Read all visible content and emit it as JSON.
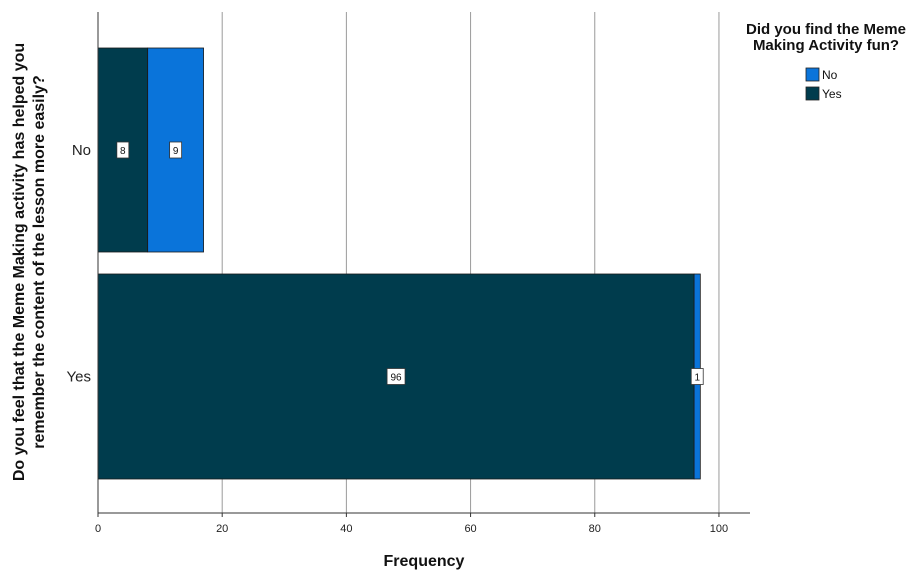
{
  "chart_data": {
    "type": "bar",
    "orientation": "horizontal",
    "stacked": true,
    "categories": [
      "No",
      "Yes"
    ],
    "series": [
      {
        "name": "Yes",
        "color": "#003C4D",
        "values": [
          8,
          96
        ]
      },
      {
        "name": "No",
        "color": "#0A74DA",
        "values": [
          9,
          1
        ]
      }
    ],
    "xlabel": "Frequency",
    "ylabel_lines": [
      "Do you feel that the Meme Making activity has helped you",
      "remember the content of the lesson more easily?"
    ],
    "xlim": [
      0,
      105
    ],
    "xticks": [
      0,
      20,
      40,
      60,
      80,
      100
    ],
    "grid": true,
    "legend": {
      "title_lines": [
        "Did you find the Meme",
        "Making Activity fun?"
      ],
      "position": "top-right",
      "entries": [
        {
          "label": "No",
          "color": "#0A74DA"
        },
        {
          "label": "Yes",
          "color": "#003C4D"
        }
      ]
    }
  }
}
